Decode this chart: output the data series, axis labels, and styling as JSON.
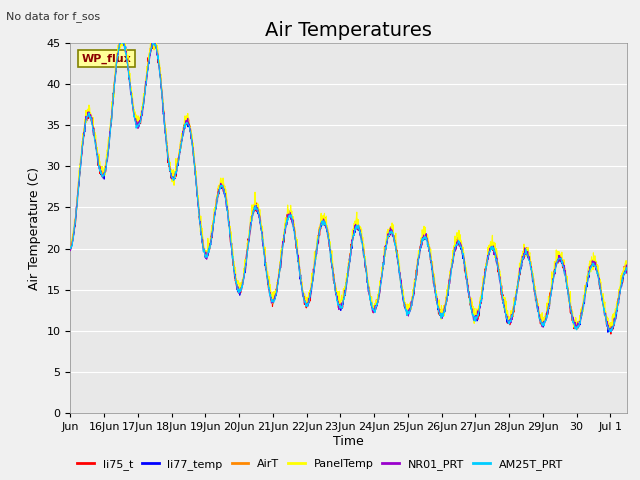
{
  "title": "Air Temperatures",
  "top_left_text": "No data for f_sos",
  "ylabel": "Air Temperature (C)",
  "xlabel": "Time",
  "ylim": [
    0,
    45
  ],
  "yticks": [
    0,
    5,
    10,
    15,
    20,
    25,
    30,
    35,
    40,
    45
  ],
  "background_color": "#e8e8e8",
  "plot_bg_color": "#e8e8e8",
  "grid_color": "#ffffff",
  "wp_flux_label": "WP_flux",
  "wp_flux_box_color": "#ffff99",
  "wp_flux_text_color": "#8B0000",
  "wp_flux_border_color": "#808000",
  "legend_entries": [
    "li75_t",
    "li77_temp",
    "AirT",
    "PanelTemp",
    "NR01_PRT",
    "AM25T_PRT"
  ],
  "legend_colors": [
    "#ff0000",
    "#0000ff",
    "#ff8800",
    "#ffff00",
    "#9900cc",
    "#00ccff"
  ],
  "series_colors": [
    "#ff0000",
    "#0000ff",
    "#ff8800",
    "#ffff00",
    "#9900cc",
    "#00ccff"
  ],
  "xtick_labels": [
    "Jun",
    "16Jun",
    "17Jun",
    "18Jun",
    "19Jun",
    "20Jun",
    "21Jun",
    "22Jun",
    "23Jun",
    "24Jun",
    "25Jun",
    "26Jun",
    "27Jun",
    "28Jun",
    "29Jun",
    "30",
    "Jul 1"
  ],
  "title_fontsize": 14,
  "axis_fontsize": 9,
  "tick_fontsize": 8
}
